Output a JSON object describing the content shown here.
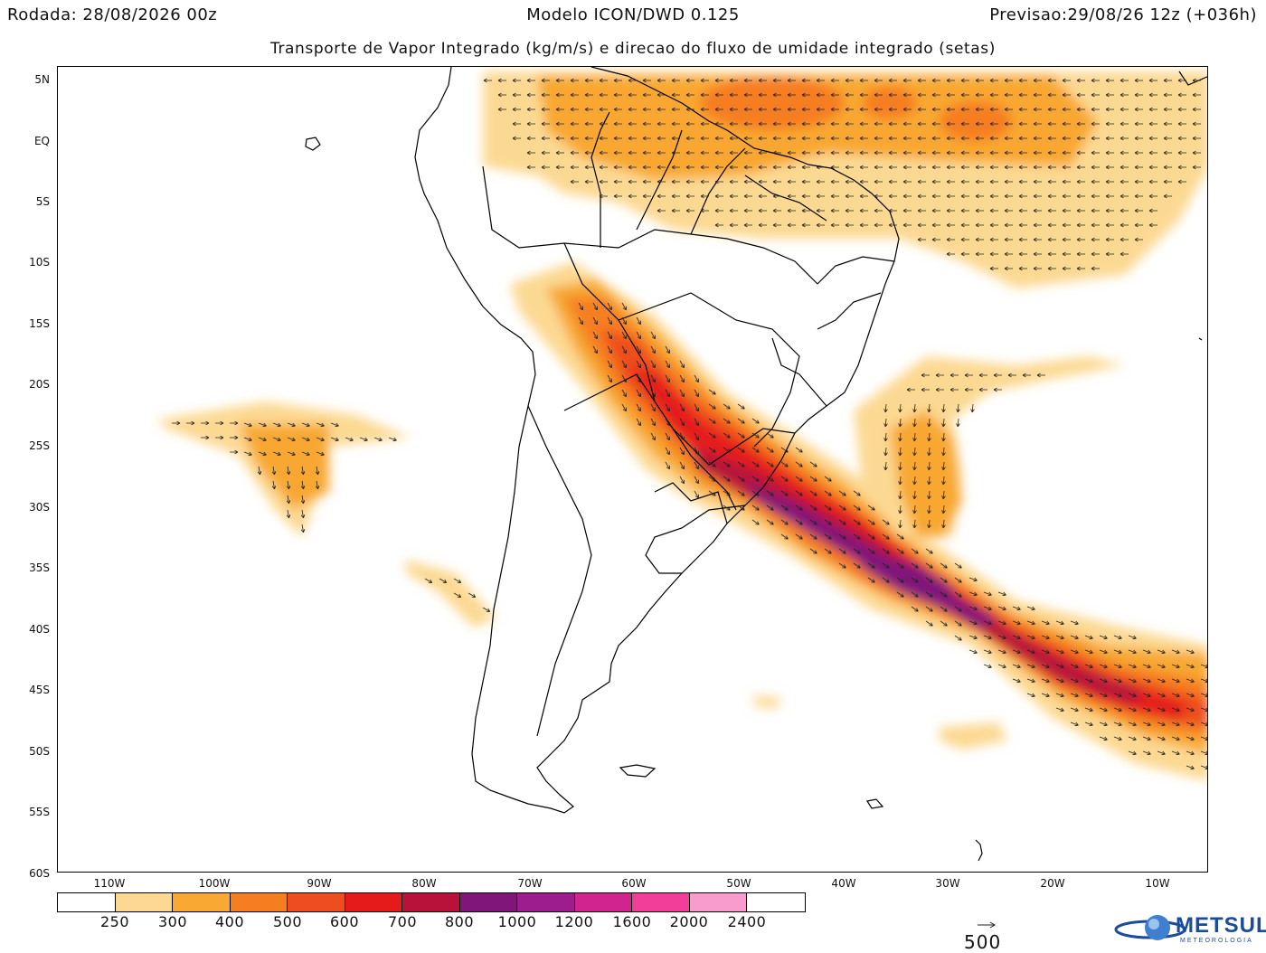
{
  "header": {
    "run": "Rodada: 28/08/2026 00z",
    "model": "Modelo ICON/DWD 0.125",
    "valid": "Previsao:29/08/26 12z (+036h)"
  },
  "subtitle": "Transporte de Vapor Integrado (kg/m/s) e direcao do fluxo de umidade integrado (setas)",
  "map": {
    "lat_labels": [
      "5N",
      "EQ",
      "5S",
      "10S",
      "15S",
      "20S",
      "25S",
      "30S",
      "35S",
      "40S",
      "45S",
      "50S",
      "55S",
      "60S"
    ],
    "lon_labels": [
      "110W",
      "100W",
      "90W",
      "80W",
      "70W",
      "60W",
      "50W",
      "40W",
      "30W",
      "20W",
      "10W"
    ]
  },
  "colorbar": {
    "colors": [
      "#ffffff",
      "#fcd993",
      "#f8a833",
      "#f57e20",
      "#ee4e1f",
      "#e51a1b",
      "#b8123a",
      "#80167a",
      "#9d1c8e",
      "#d1248f",
      "#f23e98",
      "#f79ccd",
      "#ffffff"
    ],
    "labels": [
      "250",
      "300",
      "400",
      "500",
      "600",
      "700",
      "800",
      "1000",
      "1200",
      "1600",
      "2000",
      "2400"
    ]
  },
  "reference_vector": {
    "label": "500"
  },
  "logo": {
    "name": "METSUL",
    "sub": "METEOROLOGIA"
  }
}
